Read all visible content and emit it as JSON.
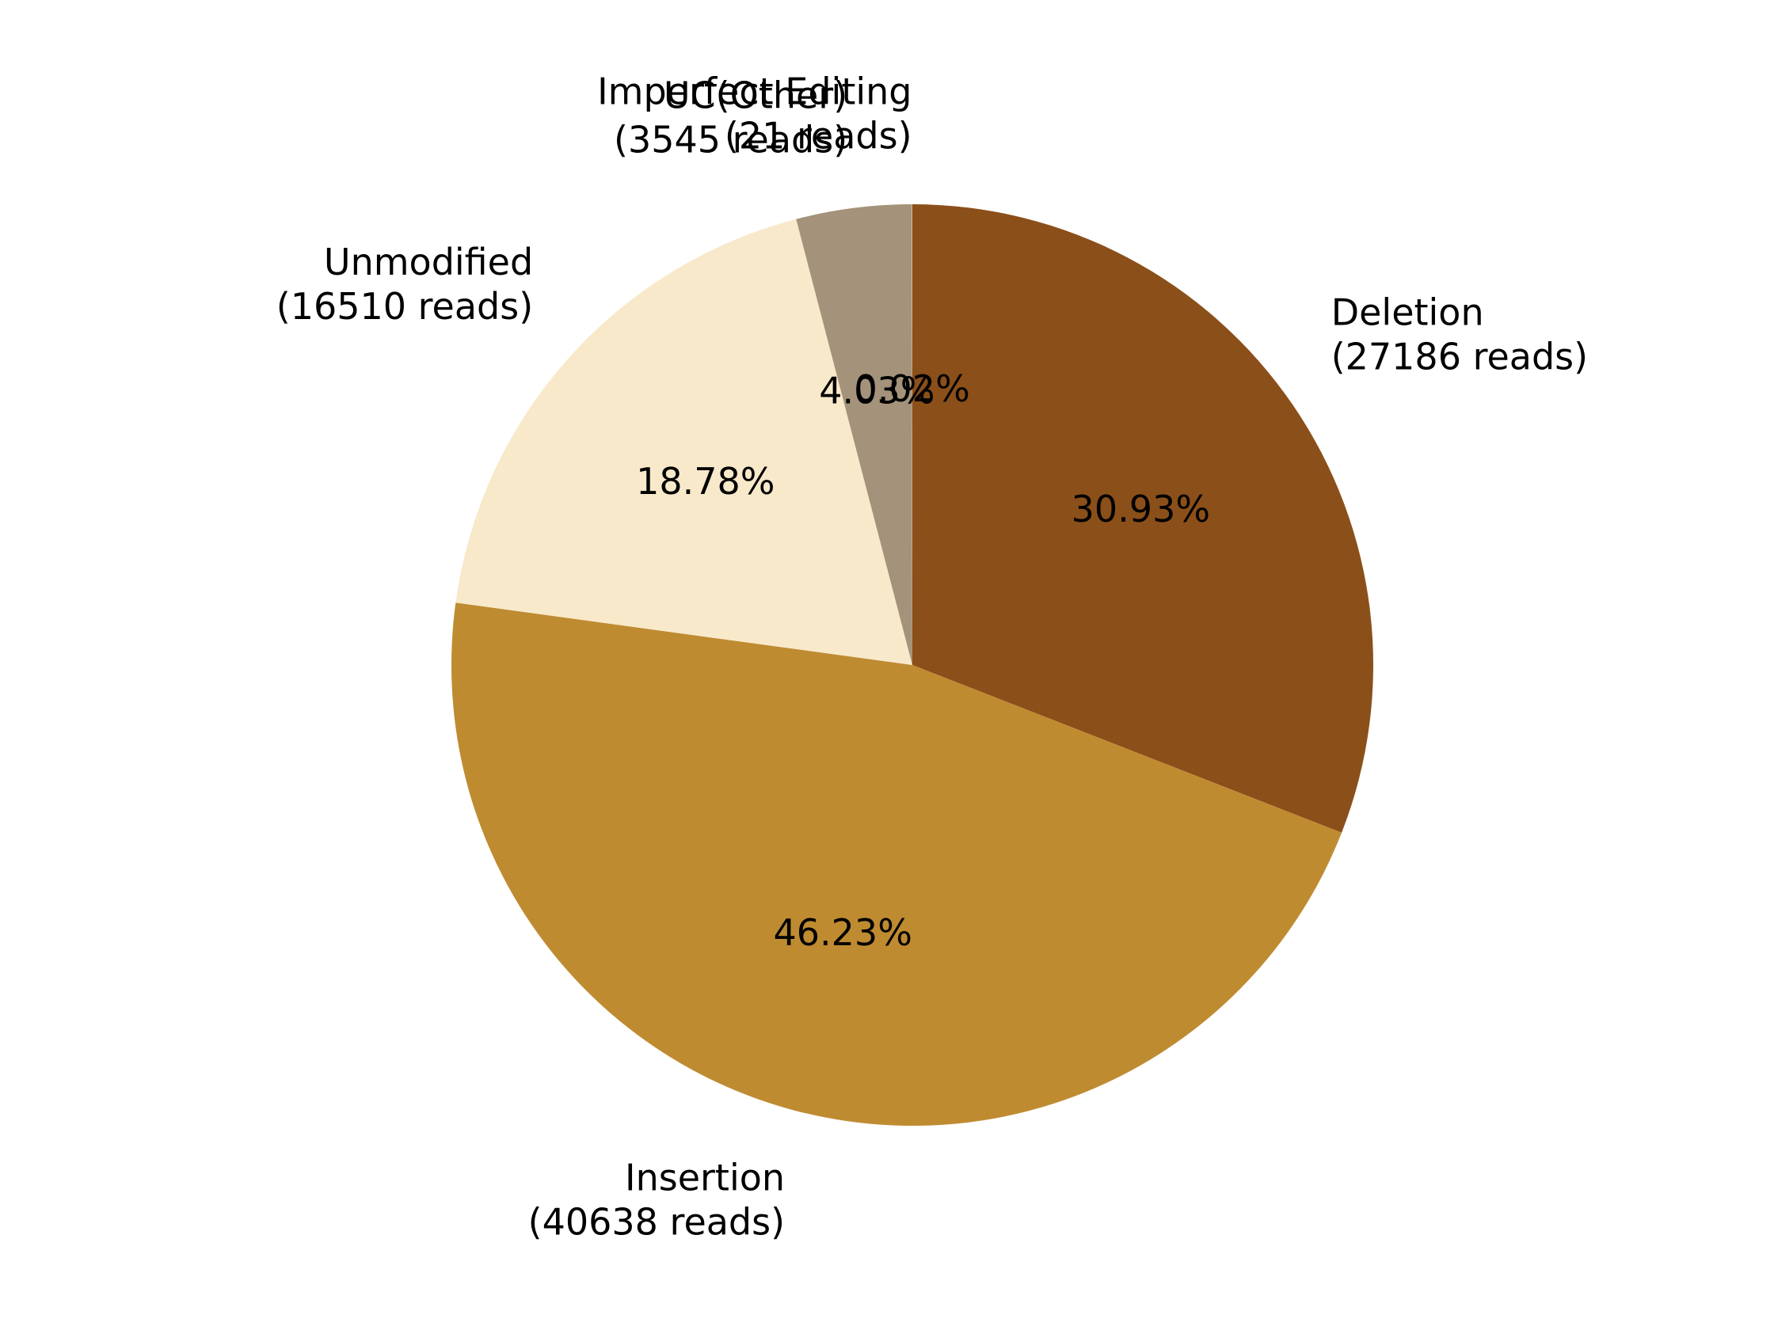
{
  "chart_data": {
    "type": "pie",
    "start_angle_deg": 90,
    "direction": "clockwise",
    "slices": [
      {
        "name": "Deletion",
        "reads_label": "(27186 reads)",
        "reads": 27186,
        "pct_label": "30.93%",
        "color": "#8B4F1A"
      },
      {
        "name": "Insertion",
        "reads_label": "(40638 reads)",
        "reads": 40638,
        "pct_label": "46.23%",
        "color": "#BF8B31"
      },
      {
        "name": "Unmodified",
        "reads_label": "(16510 reads)",
        "reads": 16510,
        "pct_label": "18.78%",
        "color": "#F8E9CA"
      },
      {
        "name": "UC(Other)",
        "reads_label": "(3545 reads)",
        "reads": 3545,
        "pct_label": "4.03%",
        "color": "#A4927A"
      },
      {
        "name": "Imperfect Editing",
        "reads_label": "(21 reads)",
        "reads": 21,
        "pct_label": "0.02%",
        "color": "#D2B48C"
      }
    ]
  }
}
